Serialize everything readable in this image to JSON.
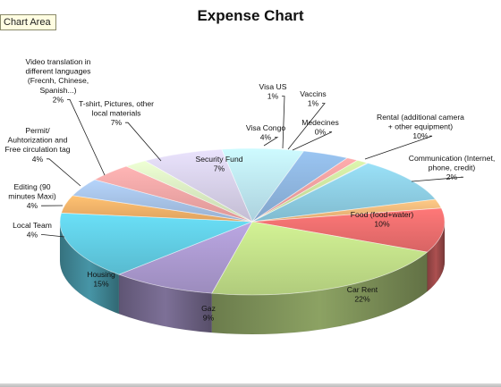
{
  "tooltip": "Chart Area",
  "chart_data": {
    "type": "pie",
    "title": "Expense Chart",
    "unit": "%",
    "slices": [
      {
        "label": [
          "Security Fund"
        ],
        "value": 7,
        "color": "#bfe8f6"
      },
      {
        "label": [
          "Visa Congo"
        ],
        "value": 4,
        "color": "#8fb6e0"
      },
      {
        "label": [
          "Visa US"
        ],
        "value": 1,
        "color": "#f2a0a0"
      },
      {
        "label": [
          "Vaccins"
        ],
        "value": 1,
        "color": "#cde4a0"
      },
      {
        "label": [
          "Medecines"
        ],
        "value": 0,
        "color": "#c8bce2"
      },
      {
        "label": [
          "Rental (additional camera",
          "+ other equipment)"
        ],
        "value": 10,
        "color": "#8fd0e6"
      },
      {
        "label": [
          "Communication (Internet,",
          "phone, credit)"
        ],
        "value": 2,
        "color": "#f8bb7c"
      },
      {
        "label": [
          "Food (food+water)"
        ],
        "value": 10,
        "color": "#ef6f6f"
      },
      {
        "label": [
          "Car Rent"
        ],
        "value": 22,
        "color": "#c3e18a"
      },
      {
        "label": [
          "Gaz"
        ],
        "value": 9,
        "color": "#ad9bd2"
      },
      {
        "label": [
          "Housing"
        ],
        "value": 15,
        "color": "#62cfe6"
      },
      {
        "label": [
          "Local Team"
        ],
        "value": 4,
        "color": "#f8b46a"
      },
      {
        "label": [
          "Editing (90",
          "minutes Maxi)"
        ],
        "value": 4,
        "color": "#a8c4e8"
      },
      {
        "label": [
          "Permit/",
          "Auhtorization and",
          "Free circulation tag"
        ],
        "value": 4,
        "color": "#f5a8a8"
      },
      {
        "label": [
          "Video translation in",
          "different languages",
          "(Frecnh, Chinese,",
          "Spanish...)"
        ],
        "value": 2,
        "color": "#dcefc4"
      },
      {
        "label": [
          "T-shirt, Pictures, other",
          "local materials"
        ],
        "value": 7,
        "color": "#d9d2ea"
      }
    ]
  }
}
